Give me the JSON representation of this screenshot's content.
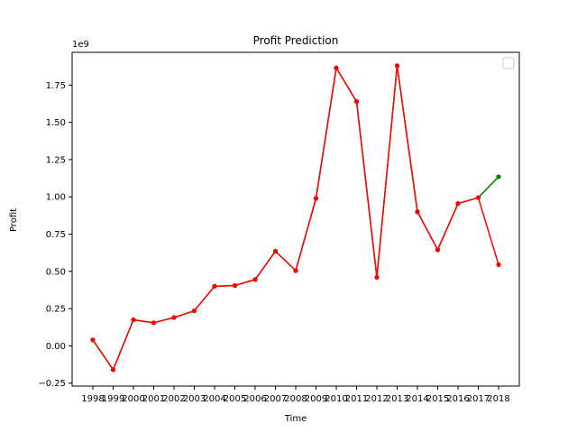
{
  "chart_data": {
    "type": "line",
    "title": "Profit Prediction",
    "xlabel": "Time",
    "ylabel": "Profit",
    "y_offset_text": "1e9",
    "y_multiplier": 1000000000,
    "categories": [
      "1998",
      "1999",
      "2000",
      "2001",
      "2002",
      "2003",
      "2004",
      "2005",
      "2006",
      "2007",
      "2008",
      "2009",
      "2010",
      "2011",
      "2012",
      "2013",
      "2014",
      "2015",
      "2016",
      "2017",
      "2018"
    ],
    "yticks": [
      -0.25,
      0.0,
      0.25,
      0.5,
      0.75,
      1.0,
      1.25,
      1.5,
      1.75
    ],
    "ytick_labels": [
      "−0.25",
      "0.00",
      "0.25",
      "0.50",
      "0.75",
      "1.00",
      "1.25",
      "1.50",
      "1.75"
    ],
    "ylim": [
      -0.27,
      1.97
    ],
    "grid": false,
    "legend": "top-right",
    "series": [
      {
        "color": "#008000",
        "values": [
          0.04,
          -0.16,
          0.175,
          0.155,
          0.19,
          0.235,
          0.4,
          0.405,
          0.445,
          0.635,
          0.505,
          0.99,
          1.865,
          1.64,
          0.46,
          1.88,
          0.9,
          0.645,
          0.955,
          0.995,
          1.135
        ]
      },
      {
        "color": "#ff0000",
        "values": [
          0.04,
          -0.16,
          0.175,
          0.155,
          0.19,
          0.235,
          0.4,
          0.405,
          0.445,
          0.635,
          0.505,
          0.99,
          1.865,
          1.64,
          0.46,
          1.88,
          0.9,
          0.645,
          0.955,
          0.995,
          0.545
        ]
      }
    ]
  }
}
